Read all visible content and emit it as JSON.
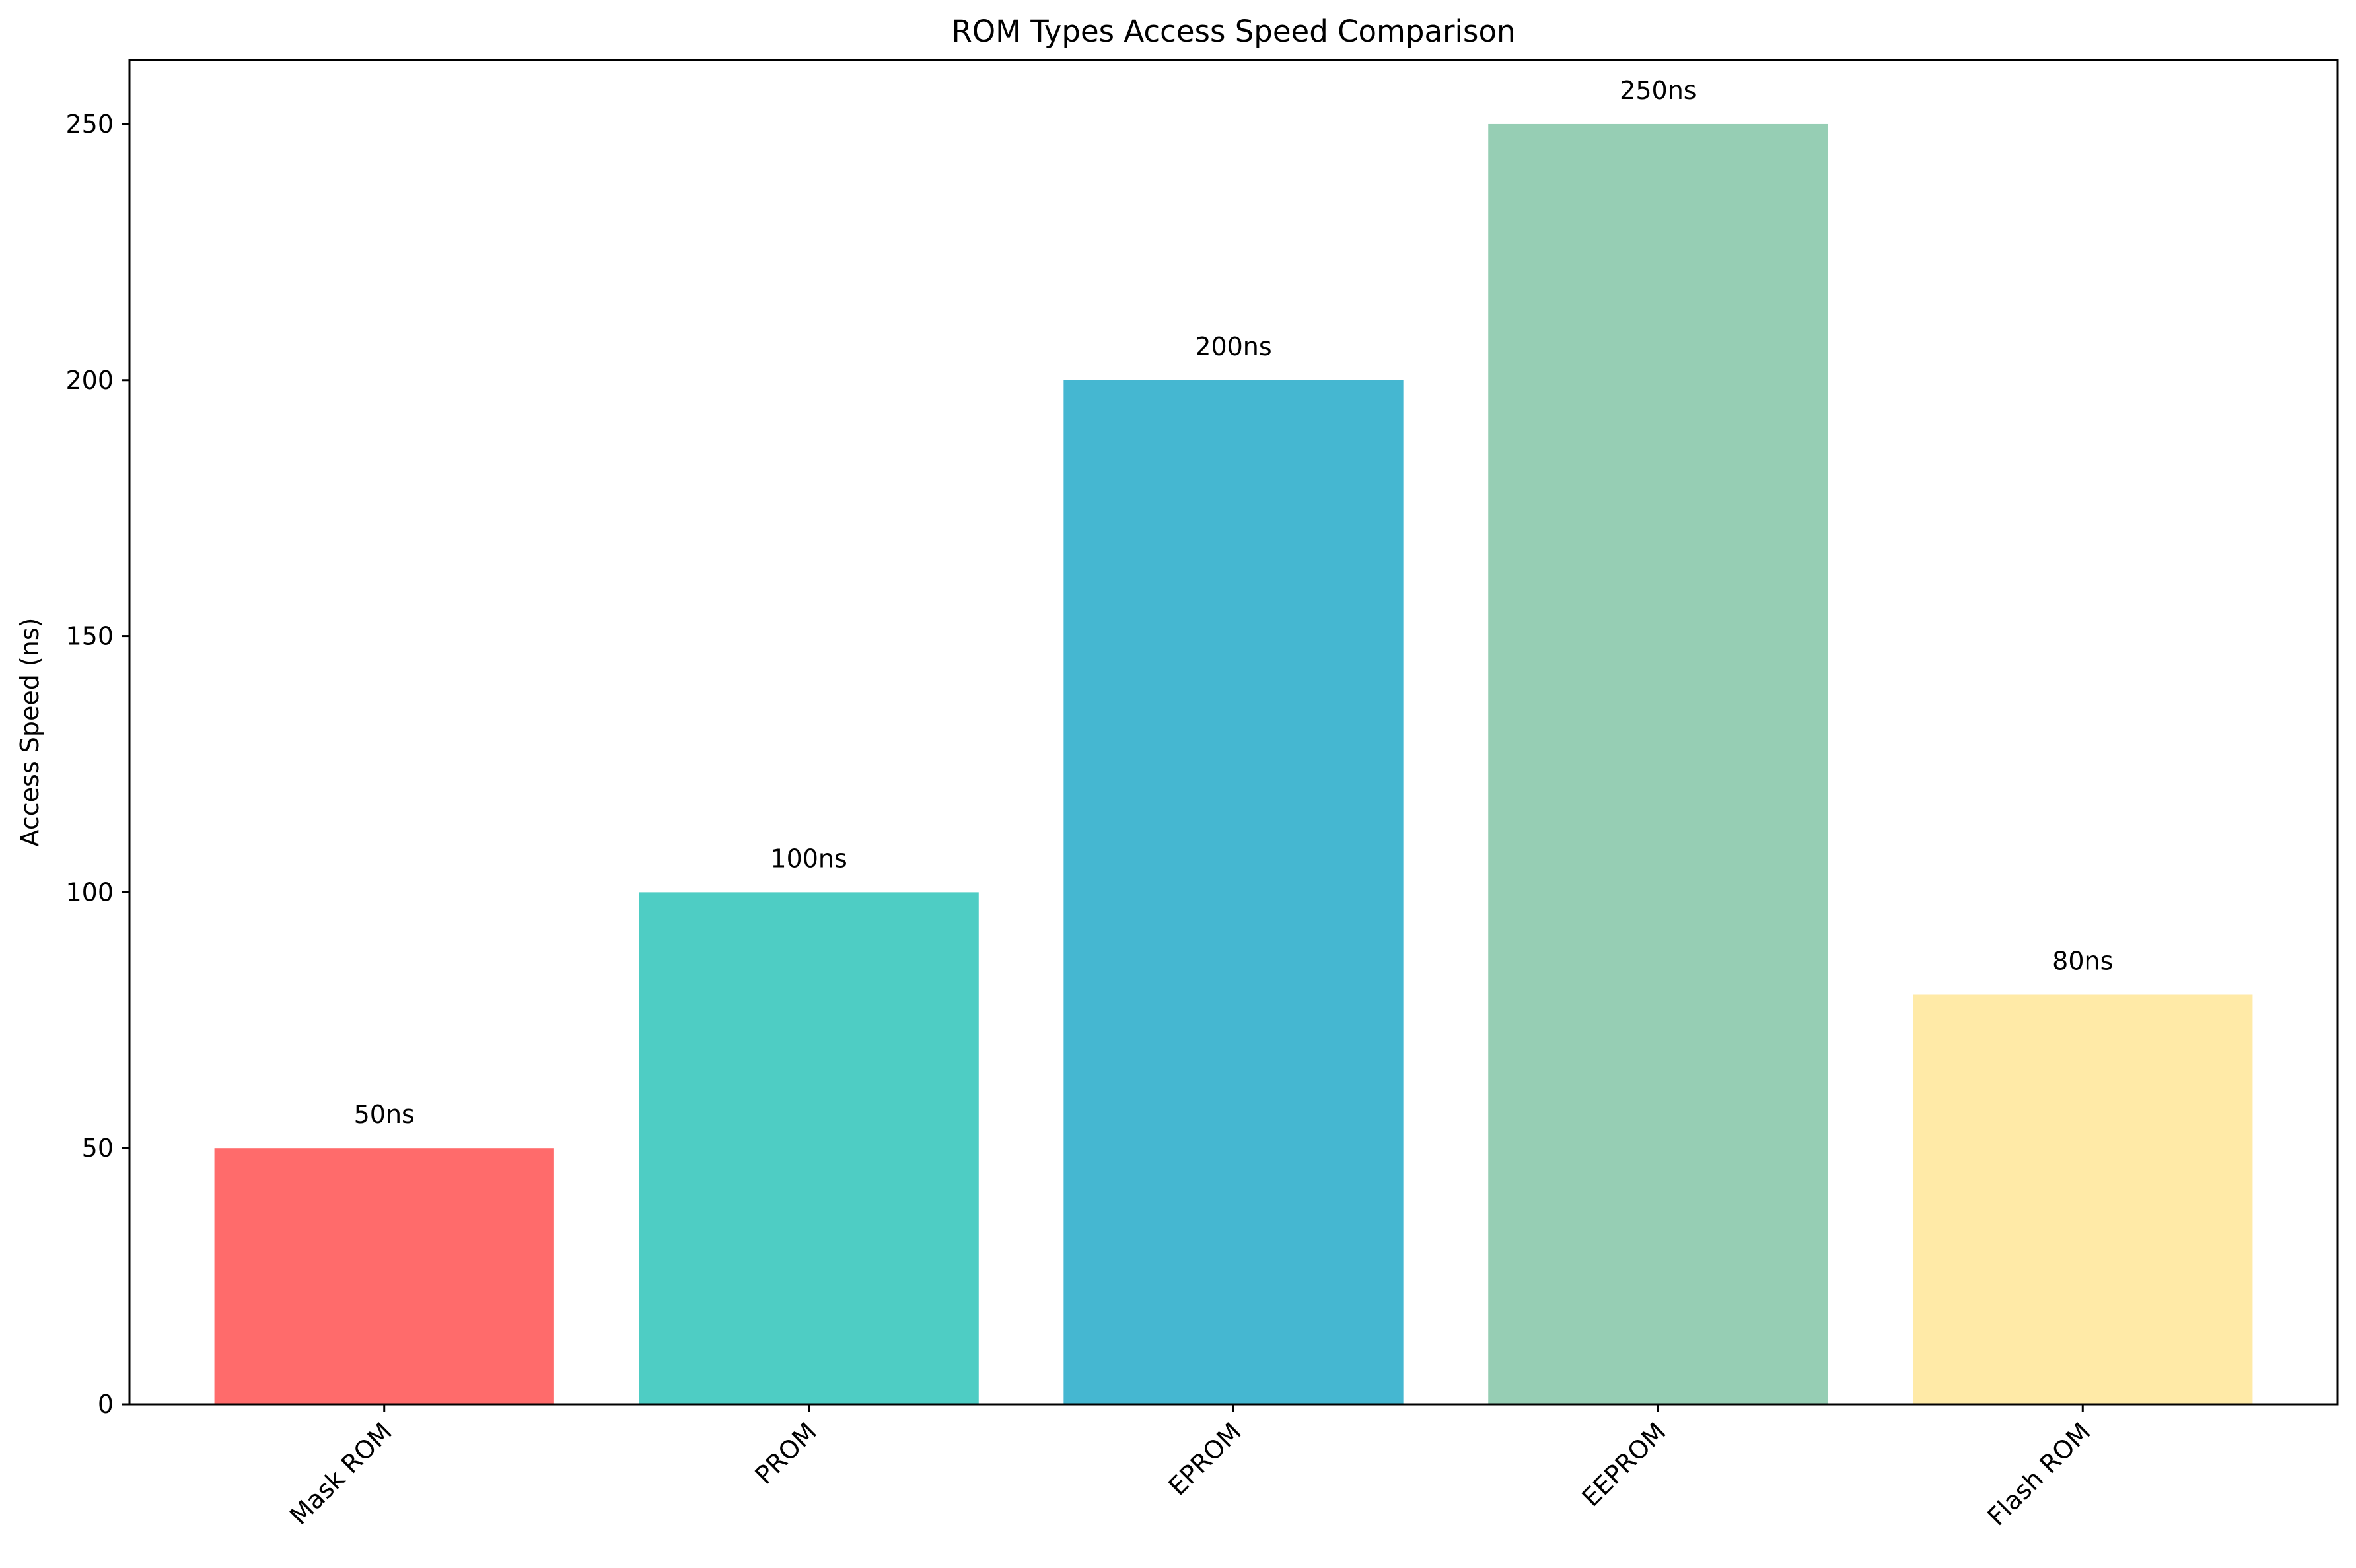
{
  "chart_data": {
    "type": "bar",
    "title": "ROM Types Access Speed Comparison",
    "xlabel": "",
    "ylabel": "Access Speed (ns)",
    "categories": [
      "Mask ROM",
      "PROM",
      "EPROM",
      "EEPROM",
      "Flash ROM"
    ],
    "values": [
      50,
      100,
      200,
      250,
      80
    ],
    "data_labels": [
      "50ns",
      "100ns",
      "200ns",
      "250ns",
      "80ns"
    ],
    "colors": [
      "#FF6B6B",
      "#4ECDC4",
      "#45B7D1",
      "#96CEB4",
      "#FFEAA7"
    ],
    "ylim": [
      0,
      262.5
    ],
    "yticks": [
      0,
      50,
      100,
      150,
      200,
      250
    ],
    "ytick_labels": [
      "0",
      "50",
      "100",
      "150",
      "200",
      "250"
    ],
    "xtick_rotation_deg": 45,
    "grid": false,
    "legend": "none"
  }
}
